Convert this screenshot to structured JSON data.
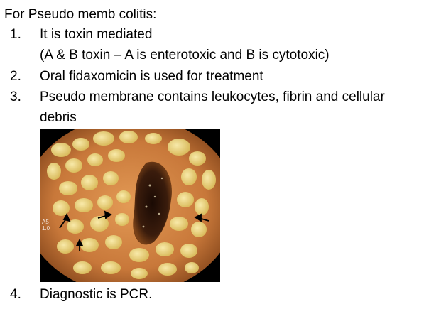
{
  "heading": "For Pseudo memb colitis:",
  "items": [
    {
      "num": "1.",
      "text": "It is toxin mediated"
    },
    {
      "num": "2.",
      "text": "Oral fidaxomicin is used for treatment"
    },
    {
      "num": "3.",
      "text": "Pseudo membrane contains leukocytes, fibrin and cellular"
    },
    {
      "num": "4.",
      "text": "Diagnostic is PCR."
    }
  ],
  "item1_sub": "(A & B toxin – A is enterotoxic and B is cytotoxic)",
  "item3_cont": "debris",
  "figure": {
    "subject": "endoscopic image of colon with pseudomembranes",
    "overlay_label_1": "A5",
    "overlay_label_2": "1.0",
    "colors": {
      "mucosa": "#c8783a",
      "plaque": "#e8d27a",
      "lumen": "#2a140a",
      "border": "#000000"
    }
  }
}
